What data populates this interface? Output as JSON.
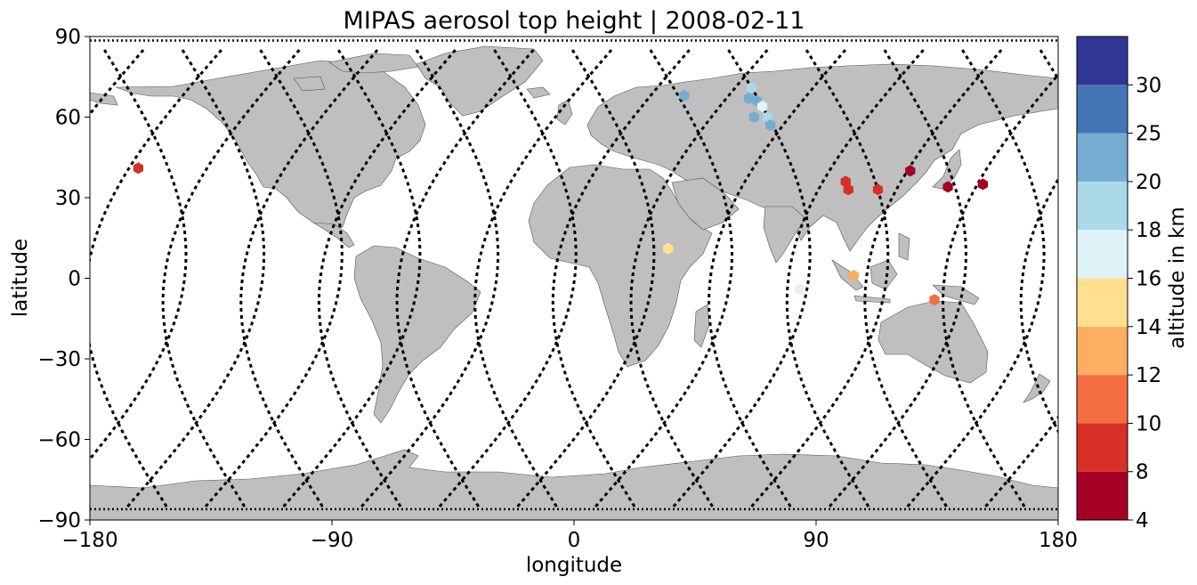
{
  "chart_data": {
    "type": "scatter",
    "title": "MIPAS aerosol top height | 2008-02-11",
    "xlabel": "longitude",
    "ylabel": "latitude",
    "xlim": [
      -180,
      180
    ],
    "ylim": [
      -90,
      90
    ],
    "x_ticks": [
      -180,
      -90,
      0,
      90,
      180
    ],
    "y_ticks": [
      -90,
      -60,
      -30,
      0,
      30,
      60,
      90
    ],
    "x_tick_labels": [
      "−180",
      "−90",
      "0",
      "90",
      "180"
    ],
    "y_tick_labels": [
      "−90",
      "−60",
      "−30",
      "0",
      "30",
      "60",
      "90"
    ],
    "grid": false,
    "colorbar": {
      "label": "altitude in km",
      "boundaries": [
        4,
        8,
        10,
        12,
        14,
        16,
        18,
        20,
        25,
        30
      ],
      "tick_labels": [
        "4",
        "8",
        "10",
        "12",
        "14",
        "16",
        "18",
        "20",
        "25",
        "30"
      ],
      "colors": [
        "#a50026",
        "#d73027",
        "#f46d43",
        "#fdae61",
        "#fee090",
        "#e0f3f8",
        "#abd9e9",
        "#74add1",
        "#4575b4",
        "#313695"
      ]
    },
    "land_color": "#bfbfbf",
    "orbit_track_color": "#000000",
    "points": [
      {
        "lon": -162,
        "lat": 41,
        "alt": 9
      },
      {
        "lon": 35,
        "lat": 11,
        "alt": 15
      },
      {
        "lon": 41,
        "lat": 68,
        "alt": 22
      },
      {
        "lon": 66,
        "lat": 71,
        "alt": 19
      },
      {
        "lon": 65,
        "lat": 67,
        "alt": 22
      },
      {
        "lon": 68,
        "lat": 66,
        "alt": 20
      },
      {
        "lon": 70,
        "lat": 64,
        "alt": 17
      },
      {
        "lon": 67,
        "lat": 60,
        "alt": 22
      },
      {
        "lon": 72,
        "lat": 60,
        "alt": 19
      },
      {
        "lon": 73,
        "lat": 57,
        "alt": 22
      },
      {
        "lon": 101,
        "lat": 36,
        "alt": 9
      },
      {
        "lon": 102,
        "lat": 33,
        "alt": 9
      },
      {
        "lon": 113,
        "lat": 33,
        "alt": 9
      },
      {
        "lon": 125,
        "lat": 40,
        "alt": 6
      },
      {
        "lon": 139,
        "lat": 34,
        "alt": 6
      },
      {
        "lon": 152,
        "lat": 35,
        "alt": 6
      },
      {
        "lon": 84,
        "lat": -4,
        "alt": 17
      },
      {
        "lon": 104,
        "lat": 1,
        "alt": 13
      },
      {
        "lon": 134,
        "lat": -8,
        "alt": 11
      }
    ]
  }
}
